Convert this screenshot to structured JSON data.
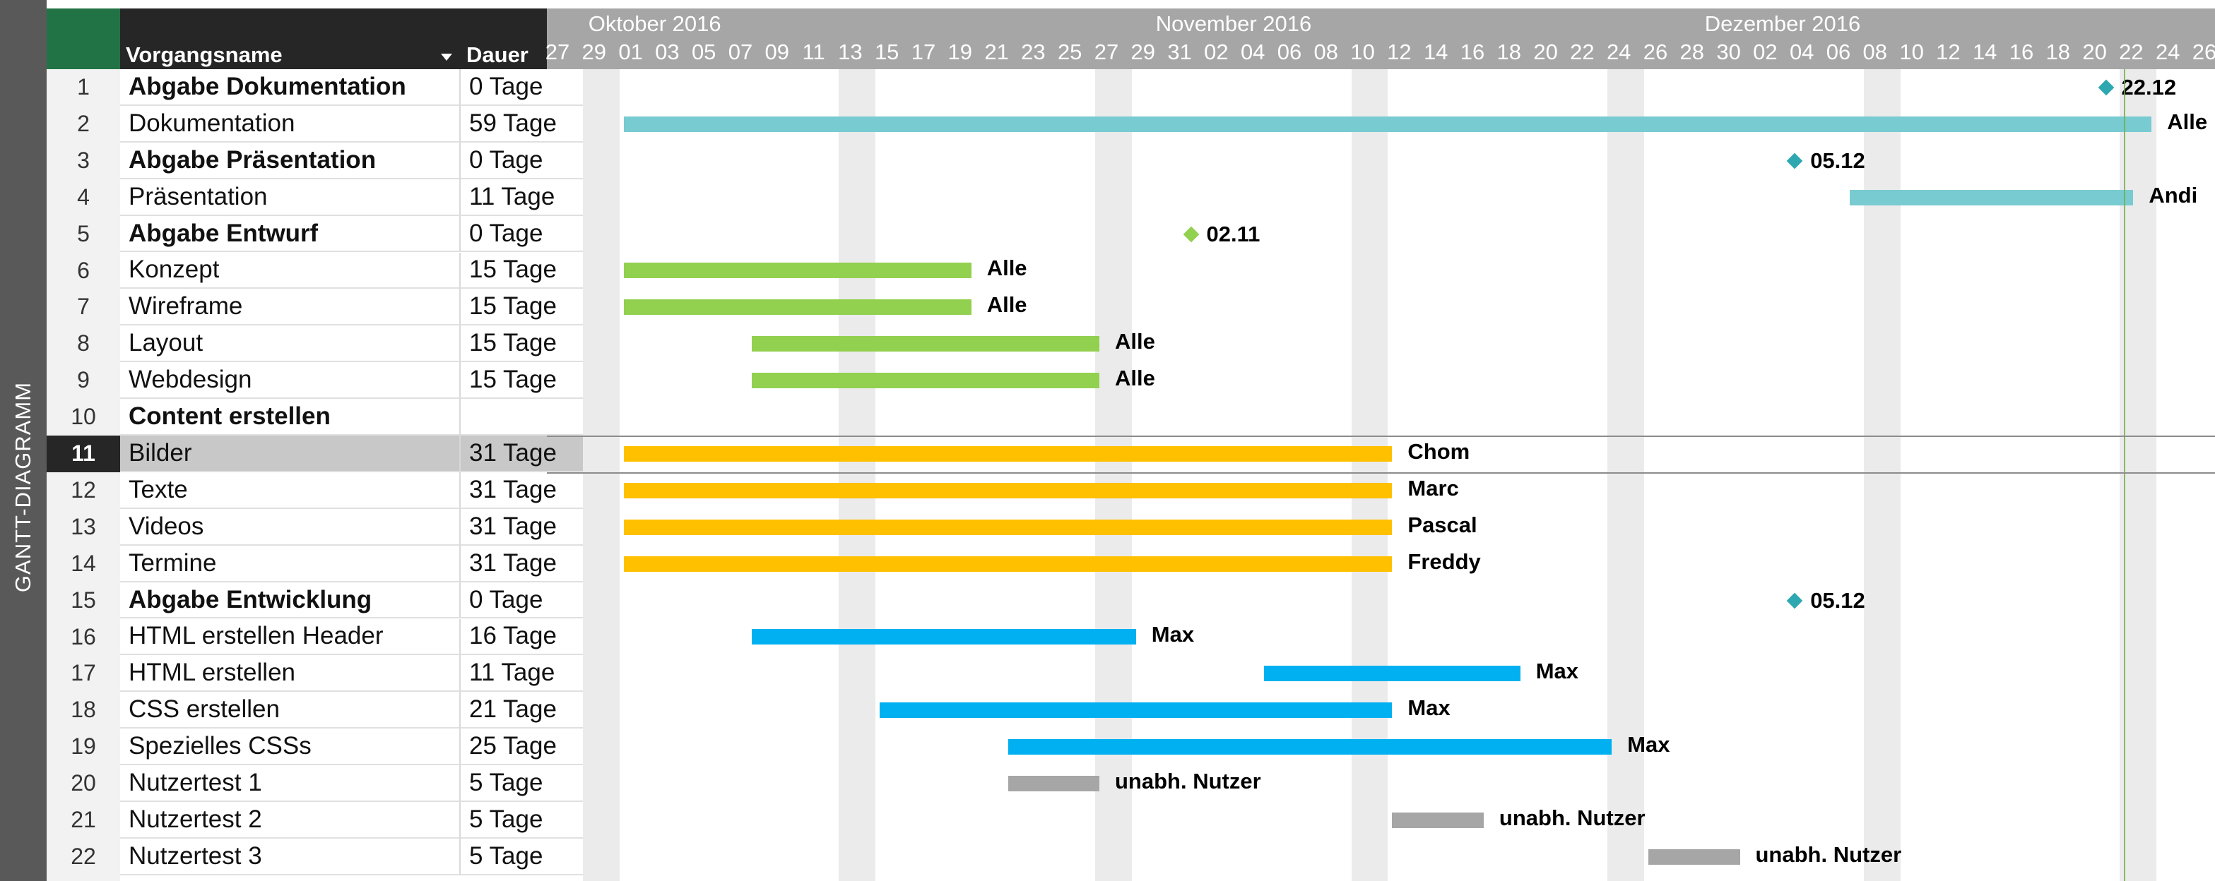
{
  "view_label": "GANTT-DIAGRAMM",
  "table": {
    "header_name": "Vorgangsname",
    "header_duration": "Dauer",
    "rows": [
      {
        "id": "1",
        "name": "Abgabe Dokumentation",
        "duration": "0 Tage",
        "bold": true
      },
      {
        "id": "2",
        "name": "Dokumentation",
        "duration": "59 Tage",
        "bold": false
      },
      {
        "id": "3",
        "name": "Abgabe Präsentation",
        "duration": "0 Tage",
        "bold": true
      },
      {
        "id": "4",
        "name": "Präsentation",
        "duration": "11 Tage",
        "bold": false
      },
      {
        "id": "5",
        "name": "Abgabe Entwurf",
        "duration": "0 Tage",
        "bold": true
      },
      {
        "id": "6",
        "name": "Konzept",
        "duration": "15 Tage",
        "bold": false
      },
      {
        "id": "7",
        "name": "Wireframe",
        "duration": "15 Tage",
        "bold": false
      },
      {
        "id": "8",
        "name": "Layout",
        "duration": "15 Tage",
        "bold": false
      },
      {
        "id": "9",
        "name": "Webdesign",
        "duration": "15 Tage",
        "bold": false
      },
      {
        "id": "10",
        "name": "Content erstellen",
        "duration": "",
        "bold": true
      },
      {
        "id": "11",
        "name": "Bilder",
        "duration": "31 Tage",
        "bold": false,
        "selected": true
      },
      {
        "id": "12",
        "name": "Texte",
        "duration": "31 Tage",
        "bold": false
      },
      {
        "id": "13",
        "name": "Videos",
        "duration": "31 Tage",
        "bold": false
      },
      {
        "id": "14",
        "name": "Termine",
        "duration": "31 Tage",
        "bold": false
      },
      {
        "id": "15",
        "name": "Abgabe Entwicklung",
        "duration": "0 Tage",
        "bold": true
      },
      {
        "id": "16",
        "name": "HTML erstellen Header",
        "duration": "16 Tage",
        "bold": false
      },
      {
        "id": "17",
        "name": "HTML erstellen",
        "duration": "11 Tage",
        "bold": false
      },
      {
        "id": "18",
        "name": "CSS erstellen",
        "duration": "21 Tage",
        "bold": false
      },
      {
        "id": "19",
        "name": "Spezielles CSSs",
        "duration": "25 Tage",
        "bold": false
      },
      {
        "id": "20",
        "name": "Nutzertest 1",
        "duration": "5 Tage",
        "bold": false
      },
      {
        "id": "21",
        "name": "Nutzertest 2",
        "duration": "5 Tage",
        "bold": false
      },
      {
        "id": "22",
        "name": "Nutzertest 3",
        "duration": "5 Tage",
        "bold": false
      }
    ]
  },
  "timescale": {
    "months": [
      {
        "label": "Oktober 2016",
        "day_index": 2
      },
      {
        "label": "November 2016",
        "day_index": 33
      },
      {
        "label": "Dezember 2016",
        "day_index": 63
      }
    ],
    "ticks": [
      "27",
      "29",
      "01",
      "03",
      "05",
      "07",
      "09",
      "11",
      "13",
      "15",
      "17",
      "19",
      "21",
      "23",
      "25",
      "27",
      "29",
      "31",
      "02",
      "04",
      "06",
      "08",
      "10",
      "12",
      "14",
      "16",
      "18",
      "20",
      "22",
      "24",
      "26",
      "28",
      "30",
      "02",
      "04",
      "06",
      "08",
      "10",
      "12",
      "14",
      "16",
      "18",
      "20",
      "22",
      "24",
      "26"
    ],
    "weekend_day_indices": [
      2,
      16,
      30,
      44,
      58,
      72,
      86,
      100,
      114
    ],
    "today_day_index": 86
  },
  "colors": {
    "teal": "#78cbd0",
    "green": "#92d050",
    "orange": "#ffc000",
    "blue": "#00b0f0",
    "gray": "#a6a6a6",
    "milestone_teal": "#2ea8b0",
    "milestone_green": "#92d050"
  },
  "gantt": {
    "bars": [
      {
        "row": 2,
        "start": 4,
        "end": 87.5,
        "color": "teal",
        "label": "Alle"
      },
      {
        "row": 4,
        "start": 71,
        "end": 86.5,
        "color": "teal",
        "label": "Andi"
      },
      {
        "row": 6,
        "start": 4,
        "end": 23,
        "color": "green",
        "label": "Alle"
      },
      {
        "row": 7,
        "start": 4,
        "end": 23,
        "color": "green",
        "label": "Alle"
      },
      {
        "row": 8,
        "start": 11,
        "end": 30,
        "color": "green",
        "label": "Alle"
      },
      {
        "row": 9,
        "start": 11,
        "end": 30,
        "color": "green",
        "label": "Alle"
      },
      {
        "row": 11,
        "start": 4,
        "end": 46,
        "color": "orange",
        "label": "Chom"
      },
      {
        "row": 12,
        "start": 4,
        "end": 46,
        "color": "orange",
        "label": "Marc"
      },
      {
        "row": 13,
        "start": 4,
        "end": 46,
        "color": "orange",
        "label": "Pascal"
      },
      {
        "row": 14,
        "start": 4,
        "end": 46,
        "color": "orange",
        "label": "Freddy"
      },
      {
        "row": 16,
        "start": 11,
        "end": 32,
        "color": "blue",
        "label": "Max"
      },
      {
        "row": 17,
        "start": 39,
        "end": 53,
        "color": "blue",
        "label": "Max"
      },
      {
        "row": 18,
        "start": 18,
        "end": 46,
        "color": "blue",
        "label": "Max"
      },
      {
        "row": 19,
        "start": 25,
        "end": 58,
        "color": "blue",
        "label": "Max"
      },
      {
        "row": 20,
        "start": 25,
        "end": 30,
        "color": "gray",
        "label": "unabh. Nutzer"
      },
      {
        "row": 21,
        "start": 46,
        "end": 51,
        "color": "gray",
        "label": "unabh. Nutzer"
      },
      {
        "row": 22,
        "start": 60,
        "end": 65,
        "color": "gray",
        "label": "unabh. Nutzer"
      }
    ],
    "milestones": [
      {
        "row": 1,
        "day": 85,
        "color": "milestone_teal",
        "label": "22.12"
      },
      {
        "row": 3,
        "day": 68,
        "color": "milestone_teal",
        "label": "05.12"
      },
      {
        "row": 5,
        "day": 35,
        "color": "milestone_green",
        "label": "02.11"
      },
      {
        "row": 15,
        "day": 68,
        "color": "milestone_teal",
        "label": "05.12"
      }
    ]
  }
}
